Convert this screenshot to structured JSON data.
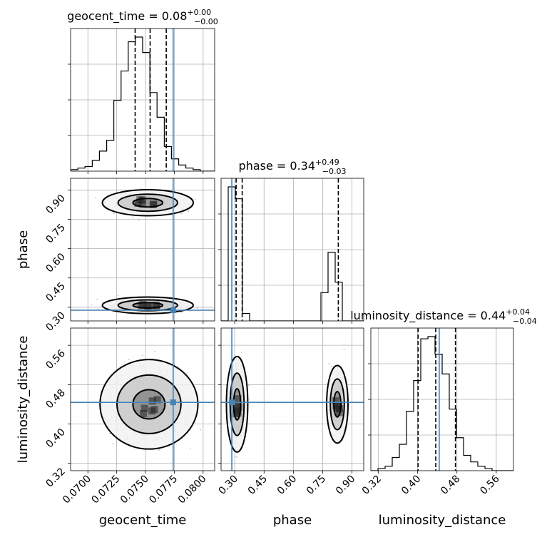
{
  "chart_data": {
    "type": "corner",
    "parameters": [
      "geocent_time",
      "phase",
      "luminosity_distance"
    ],
    "truth": {
      "geocent_time": 0.0774,
      "phase": 0.285,
      "luminosity_distance": 0.444
    },
    "titles": [
      {
        "param": "geocent_time",
        "prefix": "geocent_time = 0.08",
        "plus": "+0.00",
        "minus": "−0.00"
      },
      {
        "param": "phase",
        "prefix": "phase = 0.34",
        "plus": "+0.49",
        "minus": "−0.03"
      },
      {
        "param": "luminosity_distance",
        "prefix": "luminosity_distance = 0.44",
        "plus": "+0.04",
        "minus": "−0.04"
      }
    ],
    "axes": {
      "geocent_time": {
        "label": "geocent_time",
        "range": [
          0.0685,
          0.081
        ],
        "ticks": [
          0.07,
          0.0725,
          0.075,
          0.0775,
          0.08
        ],
        "tick_labels": [
          "0.0700",
          "0.0725",
          "0.0750",
          "0.0775",
          "0.0800"
        ],
        "quantiles": [
          0.0741,
          0.0754,
          0.0768
        ]
      },
      "phase": {
        "label": "phase",
        "range": [
          0.23,
          0.96
        ],
        "ticks": [
          0.3,
          0.45,
          0.6,
          0.75,
          0.9
        ],
        "tick_labels": [
          "0.30",
          "0.45",
          "0.60",
          "0.75",
          "0.90"
        ],
        "quantiles": [
          0.307,
          0.338,
          0.83
        ]
      },
      "luminosity_distance": {
        "label": "luminosity_distance",
        "range": [
          0.305,
          0.595
        ],
        "ticks": [
          0.32,
          0.4,
          0.48,
          0.56
        ],
        "tick_labels": [
          "0.32",
          "0.40",
          "0.48",
          "0.56"
        ],
        "quantiles": [
          0.401,
          0.437,
          0.477
        ]
      }
    },
    "histograms": {
      "geocent_time": {
        "bin_edges": [
          0.0685,
          0.06913,
          0.06975,
          0.07038,
          0.071,
          0.07163,
          0.07225,
          0.07288,
          0.0735,
          0.07413,
          0.07475,
          0.07538,
          0.076,
          0.07663,
          0.07725,
          0.07788,
          0.0785,
          0.07913,
          0.07975,
          0.08038,
          0.081
        ],
        "counts": [
          0.01,
          0.02,
          0.03,
          0.07,
          0.13,
          0.2,
          0.46,
          0.65,
          0.84,
          0.87,
          0.77,
          0.51,
          0.35,
          0.16,
          0.08,
          0.04,
          0.02,
          0.01,
          0,
          0
        ]
      },
      "phase": {
        "bin_edges": [
          0.23,
          0.2665,
          0.303,
          0.3395,
          0.376,
          0.4125,
          0.449,
          0.4855,
          0.522,
          0.5585,
          0.595,
          0.6315,
          0.668,
          0.7045,
          0.741,
          0.7775,
          0.814,
          0.8505,
          0.887,
          0.9235,
          0.96
        ],
        "counts": [
          0,
          0.9,
          0.82,
          0.05,
          0,
          0,
          0,
          0,
          0,
          0,
          0,
          0,
          0,
          0,
          0.19,
          0.46,
          0.26,
          0,
          0,
          0
        ]
      },
      "luminosity_distance": {
        "bin_edges": [
          0.305,
          0.3195,
          0.334,
          0.3485,
          0.363,
          0.3775,
          0.392,
          0.4065,
          0.421,
          0.4355,
          0.45,
          0.4645,
          0.479,
          0.4935,
          0.508,
          0.5225,
          0.537,
          0.5515,
          0.566,
          0.5805,
          0.595
        ],
        "counts": [
          0,
          0.01,
          0.02,
          0.06,
          0.12,
          0.27,
          0.41,
          0.6,
          0.61,
          0.53,
          0.44,
          0.28,
          0.15,
          0.07,
          0.04,
          0.02,
          0.01,
          0,
          0,
          0
        ]
      }
    },
    "panels_2d": [
      {
        "x": "geocent_time",
        "y": "phase",
        "modes": [
          {
            "cx": 0.0752,
            "cy": 0.835,
            "sx": 0.0013,
            "sy": 0.022,
            "n": 700
          },
          {
            "cx": 0.0752,
            "cy": 0.31,
            "sx": 0.0013,
            "sy": 0.014,
            "n": 1500
          }
        ],
        "contour_levels": [
          0.39,
          0.86,
          0.99
        ]
      },
      {
        "x": "geocent_time",
        "y": "luminosity_distance",
        "modes": [
          {
            "cx": 0.0753,
            "cy": 0.44,
            "sx": 0.0014,
            "sy": 0.03,
            "n": 2000
          }
        ],
        "contour_levels": [
          0.39,
          0.86,
          0.99
        ]
      },
      {
        "x": "phase",
        "y": "luminosity_distance",
        "modes": [
          {
            "cx": 0.312,
            "cy": 0.44,
            "sx": 0.018,
            "sy": 0.032,
            "n": 1400
          },
          {
            "cx": 0.825,
            "cy": 0.44,
            "sx": 0.018,
            "sy": 0.026,
            "n": 700
          }
        ],
        "contour_levels": [
          0.39,
          0.86,
          0.99
        ]
      }
    ],
    "colors": {
      "truth": "#4682b4",
      "hist": "#000000",
      "grid": "#b0b0b0",
      "points": "#555555"
    }
  }
}
